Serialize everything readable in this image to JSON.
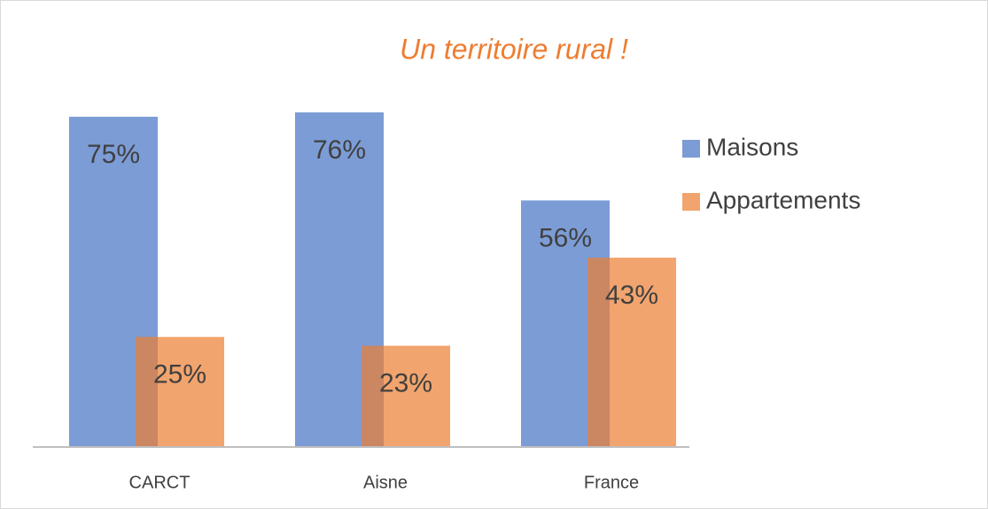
{
  "chart_data": {
    "type": "bar",
    "title": "Un territoire rural !",
    "categories": [
      "CARCT",
      "Aisne",
      "France"
    ],
    "series": [
      {
        "name": "Maisons",
        "color": "#4472c4",
        "values": [
          75,
          76,
          56
        ],
        "value_labels": [
          "75%",
          "76%",
          "56%"
        ]
      },
      {
        "name": "Appartements",
        "color": "#ed7d31",
        "values": [
          25,
          23,
          43
        ],
        "value_labels": [
          "25%",
          "23%",
          "43%"
        ]
      }
    ],
    "ylim": [
      0,
      80
    ],
    "legend": "right"
  }
}
